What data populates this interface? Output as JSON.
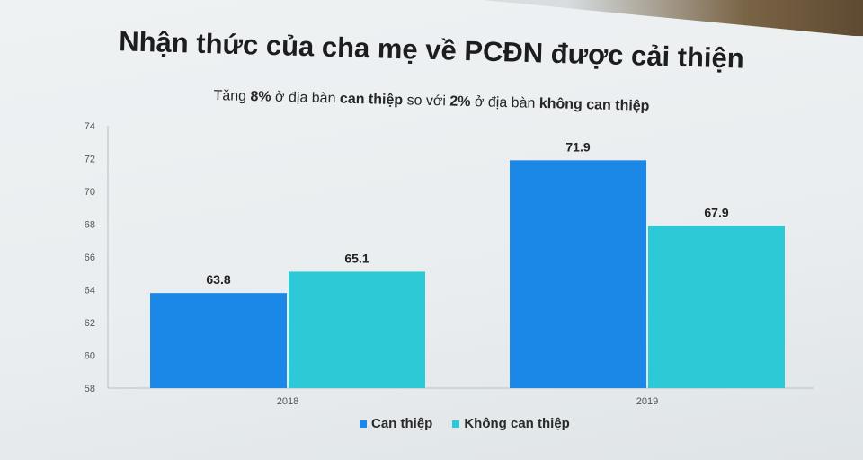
{
  "chart_data": {
    "type": "bar",
    "title": "Nhận thức của cha mẹ về PCĐN được cải thiện",
    "subtitle": {
      "p1": "Tăng ",
      "p2": "8%",
      "p3": " ở địa bàn ",
      "p4": "can thiệp",
      "p5": " so với ",
      "p6": "2%",
      "p7": " ở địa bàn ",
      "p8": "không can thiệp"
    },
    "categories": [
      "2018",
      "2019"
    ],
    "series": [
      {
        "name": "Can thiệp",
        "color": "#1b87e6",
        "values": [
          63.8,
          71.9
        ]
      },
      {
        "name": "Không can thiệp",
        "color": "#2ec9d6",
        "values": [
          65.1,
          67.9
        ]
      }
    ],
    "ylim": [
      58,
      74
    ],
    "yticks": [
      58,
      60,
      62,
      64,
      66,
      68,
      70,
      72,
      74
    ],
    "grid": false,
    "legend_position": "bottom"
  }
}
